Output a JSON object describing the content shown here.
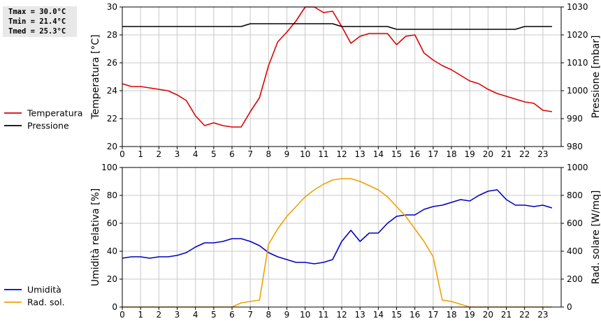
{
  "stats": {
    "tmax": "Tmax = 30.0°C",
    "tmin": "Tmin = 21.4°C",
    "tmed": "Tmed = 25.3°C"
  },
  "colors": {
    "temperature": "#dd0000",
    "pressure": "#000000",
    "humidity": "#0000c0",
    "solar": "#f0a000",
    "grid": "#c8c8c8"
  },
  "chart_data": [
    {
      "type": "line",
      "x_ticks": [
        0,
        1,
        2,
        3,
        4,
        5,
        6,
        7,
        8,
        9,
        10,
        11,
        12,
        13,
        14,
        15,
        16,
        17,
        18,
        19,
        20,
        21,
        22,
        23
      ],
      "xlim": [
        0,
        24
      ],
      "ylabel": "Temperatura [°C]",
      "ylim": [
        20,
        30
      ],
      "y_ticks": [
        20,
        22,
        24,
        26,
        28,
        30
      ],
      "y2label": "Pressione [mbar]",
      "y2lim": [
        980,
        1030
      ],
      "y2_ticks": [
        980,
        990,
        1000,
        1010,
        1020,
        1030
      ],
      "legend": [
        "Temperatura",
        "Pressione"
      ],
      "legend_position": "left",
      "grid": true,
      "series": [
        {
          "name": "Temperatura",
          "axis": "left",
          "color": "#dd0000",
          "x": [
            0,
            0.5,
            1,
            1.5,
            2,
            2.5,
            3,
            3.5,
            4,
            4.5,
            5,
            5.5,
            6,
            6.5,
            7,
            7.5,
            8,
            8.5,
            9,
            9.5,
            10,
            10.5,
            11,
            11.5,
            12,
            12.5,
            13,
            13.5,
            14,
            14.5,
            15,
            15.5,
            16,
            16.5,
            17,
            17.5,
            18,
            18.5,
            19,
            19.5,
            20,
            20.5,
            21,
            21.5,
            22,
            22.5,
            23,
            23.5
          ],
          "y": [
            24.5,
            24.3,
            24.3,
            24.2,
            24.1,
            24.0,
            23.7,
            23.3,
            22.2,
            21.5,
            21.7,
            21.5,
            21.4,
            21.4,
            22.5,
            23.5,
            25.8,
            27.5,
            28.2,
            29.0,
            30.0,
            30.0,
            29.6,
            29.7,
            28.6,
            27.4,
            27.9,
            28.1,
            28.1,
            28.1,
            27.3,
            27.9,
            28.0,
            26.7,
            26.2,
            25.8,
            25.5,
            25.1,
            24.7,
            24.5,
            24.1,
            23.8,
            23.6,
            23.4,
            23.2,
            23.1,
            22.6,
            22.5
          ]
        },
        {
          "name": "Pressione",
          "axis": "right",
          "color": "#000000",
          "x": [
            0,
            0.5,
            1,
            1.5,
            2,
            2.5,
            3,
            3.5,
            4,
            4.5,
            5,
            5.5,
            6,
            6.5,
            7,
            7.5,
            8,
            8.5,
            9,
            9.5,
            10,
            10.5,
            11,
            11.5,
            12,
            12.5,
            13,
            13.5,
            14,
            14.5,
            15,
            15.5,
            16,
            16.5,
            17,
            17.5,
            18,
            18.5,
            19,
            19.5,
            20,
            20.5,
            21,
            21.5,
            22,
            22.5,
            23,
            23.5
          ],
          "y": [
            1023,
            1023,
            1023,
            1023,
            1023,
            1023,
            1023,
            1023,
            1023,
            1023,
            1023,
            1023,
            1023,
            1023,
            1024,
            1024,
            1024,
            1024,
            1024,
            1024,
            1024,
            1024,
            1024,
            1024,
            1023,
            1023,
            1023,
            1023,
            1023,
            1023,
            1022,
            1022,
            1022,
            1022,
            1022,
            1022,
            1022,
            1022,
            1022,
            1022,
            1022,
            1022,
            1022,
            1022,
            1023,
            1023,
            1023,
            1023
          ]
        }
      ]
    },
    {
      "type": "line",
      "x_ticks": [
        0,
        1,
        2,
        3,
        4,
        5,
        6,
        7,
        8,
        9,
        10,
        11,
        12,
        13,
        14,
        15,
        16,
        17,
        18,
        19,
        20,
        21,
        22,
        23
      ],
      "xlim": [
        0,
        24
      ],
      "ylabel": "Umidità relativa [%]",
      "ylim": [
        0,
        100
      ],
      "y_ticks": [
        0,
        20,
        40,
        60,
        80,
        100
      ],
      "y2label": "Rad. solare [W/mq]",
      "y2lim": [
        0,
        1000
      ],
      "y2_ticks": [
        0,
        200,
        400,
        600,
        800,
        1000
      ],
      "legend": [
        "Umidità",
        "Rad. sol."
      ],
      "legend_position": "left",
      "grid": true,
      "series": [
        {
          "name": "Umidità",
          "axis": "left",
          "color": "#0000c0",
          "x": [
            0,
            0.5,
            1,
            1.5,
            2,
            2.5,
            3,
            3.5,
            4,
            4.5,
            5,
            5.5,
            6,
            6.5,
            7,
            7.5,
            8,
            8.5,
            9,
            9.5,
            10,
            10.5,
            11,
            11.5,
            12,
            12.5,
            13,
            13.5,
            14,
            14.5,
            15,
            15.5,
            16,
            16.5,
            17,
            17.5,
            18,
            18.5,
            19,
            19.5,
            20,
            20.5,
            21,
            21.5,
            22,
            22.5,
            23,
            23.5
          ],
          "y": [
            35,
            36,
            36,
            35,
            36,
            36,
            37,
            39,
            43,
            46,
            46,
            47,
            49,
            49,
            47,
            44,
            39,
            36,
            34,
            32,
            32,
            31,
            32,
            34,
            47,
            55,
            47,
            53,
            53,
            60,
            65,
            66,
            66,
            70,
            72,
            73,
            75,
            77,
            76,
            80,
            83,
            84,
            77,
            73,
            73,
            72,
            73,
            71
          ]
        },
        {
          "name": "Rad. sol.",
          "axis": "right",
          "color": "#f0a000",
          "x": [
            0,
            0.5,
            1,
            1.5,
            2,
            2.5,
            3,
            3.5,
            4,
            4.5,
            5,
            5.5,
            6,
            6.5,
            7,
            7.5,
            8,
            8.5,
            9,
            9.5,
            10,
            10.5,
            11,
            11.5,
            12,
            12.5,
            13,
            13.5,
            14,
            14.5,
            15,
            15.5,
            16,
            16.5,
            17,
            17.5,
            18,
            18.5,
            19,
            19.5,
            20,
            20.5,
            21,
            21.5,
            22,
            22.5,
            23,
            23.5
          ],
          "y": [
            0,
            0,
            0,
            0,
            0,
            0,
            0,
            0,
            0,
            0,
            0,
            0,
            0,
            30,
            40,
            50,
            450,
            560,
            650,
            720,
            790,
            840,
            880,
            910,
            920,
            920,
            900,
            870,
            840,
            790,
            720,
            650,
            560,
            470,
            360,
            50,
            40,
            20,
            0,
            0,
            0,
            0,
            0,
            0,
            0,
            0,
            0,
            0
          ]
        }
      ]
    }
  ]
}
